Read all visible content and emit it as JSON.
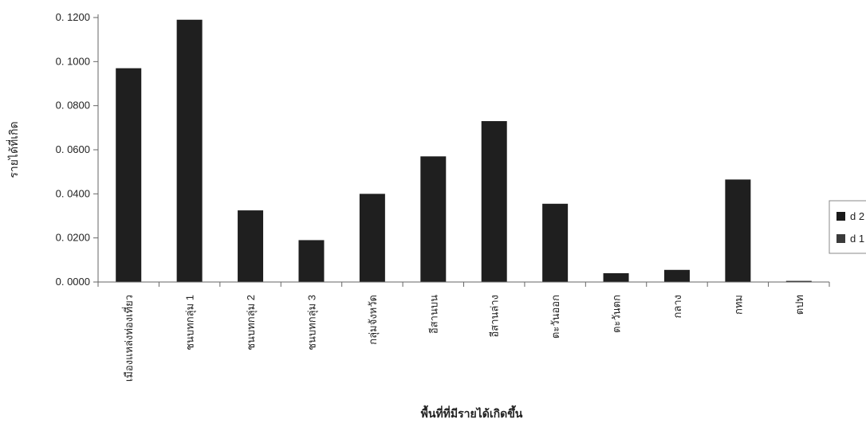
{
  "chart_data": {
    "type": "bar",
    "title": "",
    "xlabel": "พื้นที่ที่มีรายได้เกิดขึ้น",
    "ylabel": "รายได้ที่เกิด",
    "ylim": [
      0,
      0.12
    ],
    "yticks": [
      "0.0000",
      "0.0200",
      "0.0400",
      "0.0600",
      "0.0800",
      "0.1000",
      "0.1200"
    ],
    "categories": [
      "เมืองแหล่งท่องเที่ยว",
      "ชนบทกลุ่ม 1",
      "ชนบทกลุ่ม 2",
      "ชนบทกลุ่ม 3",
      "กลุ่มจังหวัด",
      "อีสานบน",
      "อีสานล่าง",
      "ตะวันออก",
      "ตะวันตก",
      "กลาง",
      "กทม",
      "ตปท"
    ],
    "values": [
      0.097,
      0.119,
      0.0325,
      0.019,
      0.04,
      0.057,
      0.073,
      0.0355,
      0.004,
      0.0055,
      0.0465,
      0.0005
    ],
    "legend": {
      "placement": "right",
      "entries": [
        "d 2",
        "d 1"
      ],
      "colors": [
        "#1a1a1a",
        "#3a3a3a"
      ]
    },
    "bar_color": "#1f1f1f",
    "grid": false
  }
}
